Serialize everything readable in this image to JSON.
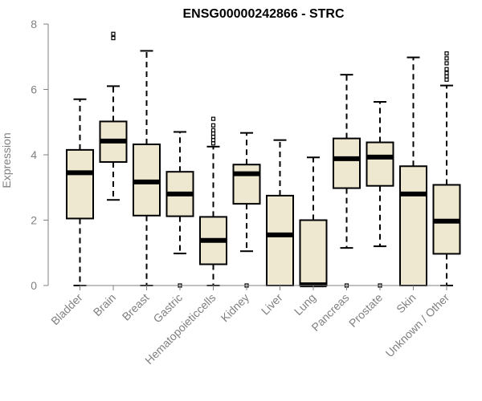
{
  "chart_data": {
    "type": "boxplot",
    "title": "ENSG00000242866 - STRC",
    "xlabel": "",
    "ylabel": "Expression",
    "ylim": [
      0,
      8
    ],
    "yticks": [
      0,
      2,
      4,
      6,
      8
    ],
    "categories": [
      "Bladder",
      "Brain",
      "Breast",
      "Gastric",
      "Hematopoieticcells",
      "Kidney",
      "Liver",
      "Lung",
      "Pancreas",
      "Prostate",
      "Skin",
      "Unknown / Other"
    ],
    "boxes": [
      {
        "label": "Bladder",
        "whisker_low": 0.0,
        "q1": 2.05,
        "median": 3.45,
        "q3": 4.15,
        "whisker_high": 5.7,
        "outliers": []
      },
      {
        "label": "Brain",
        "whisker_low": 2.62,
        "q1": 3.78,
        "median": 4.42,
        "q3": 5.02,
        "whisker_high": 6.1,
        "outliers": [
          7.57,
          7.7
        ]
      },
      {
        "label": "Breast",
        "whisker_low": 0.0,
        "q1": 2.14,
        "median": 3.17,
        "q3": 4.32,
        "whisker_high": 7.18,
        "outliers": []
      },
      {
        "label": "Gastric",
        "whisker_low": 0.98,
        "q1": 2.12,
        "median": 2.8,
        "q3": 3.48,
        "whisker_high": 4.7,
        "outliers": [
          0.0
        ]
      },
      {
        "label": "Hematopoieticcells",
        "whisker_low": 0.0,
        "q1": 0.65,
        "median": 1.38,
        "q3": 2.1,
        "whisker_high": 4.25,
        "outliers": [
          4.35,
          4.45,
          4.55,
          4.65,
          4.75,
          4.9,
          5.1
        ]
      },
      {
        "label": "Kidney",
        "whisker_low": 1.05,
        "q1": 2.5,
        "median": 3.42,
        "q3": 3.7,
        "whisker_high": 4.67,
        "outliers": [
          0.0
        ]
      },
      {
        "label": "Liver",
        "whisker_low": 0.0,
        "q1": 0.0,
        "median": 1.55,
        "q3": 2.75,
        "whisker_high": 4.45,
        "outliers": []
      },
      {
        "label": "Lung",
        "whisker_low": 0.0,
        "q1": 0.0,
        "median": 0.02,
        "q3": 2.0,
        "whisker_high": 3.92,
        "outliers": []
      },
      {
        "label": "Pancreas",
        "whisker_low": 1.15,
        "q1": 2.98,
        "median": 3.88,
        "q3": 4.5,
        "whisker_high": 6.45,
        "outliers": [
          0.0
        ]
      },
      {
        "label": "Prostate",
        "whisker_low": 1.2,
        "q1": 3.05,
        "median": 3.93,
        "q3": 4.38,
        "whisker_high": 5.62,
        "outliers": [
          0.0
        ]
      },
      {
        "label": "Skin",
        "whisker_low": 0.0,
        "q1": 0.0,
        "median": 2.8,
        "q3": 3.65,
        "whisker_high": 6.98,
        "outliers": []
      },
      {
        "label": "Unknown / Other",
        "whisker_low": 0.0,
        "q1": 0.97,
        "median": 1.97,
        "q3": 3.08,
        "whisker_high": 6.12,
        "outliers": [
          6.3,
          6.4,
          6.5,
          6.62,
          6.8,
          6.95,
          7.1
        ]
      }
    ],
    "box_fill": "#efe8d0",
    "box_stroke": "#000000",
    "axis_color": "#808080",
    "grid": false,
    "legend": "none"
  }
}
